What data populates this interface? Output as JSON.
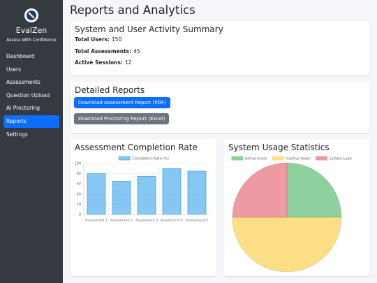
{
  "sidebar": {
    "brand": "EvalZen",
    "tagline": "Assess With Confidence",
    "nav": [
      "Dashboard",
      "Users",
      "Assessments",
      "Question Upload",
      "AI Proctoring",
      "Reports",
      "Settings"
    ],
    "active": 5
  },
  "page_title": "Reports and Analytics",
  "summary": {
    "title": "System and User Activity Summary",
    "items": [
      {
        "label": "Total Users:",
        "value": 150
      },
      {
        "label": "Total Assessments:",
        "value": 45
      },
      {
        "label": "Active Sessions:",
        "value": 12
      }
    ]
  },
  "reports": {
    "title": "Detailed Reports",
    "buttons": [
      {
        "label": "Download Assessment Report (PDF)",
        "color": "#0d6efd"
      },
      {
        "label": "Download Proctoring Report (Excel)",
        "color": "#6c757d"
      }
    ]
  },
  "chart_data": [
    {
      "type": "bar",
      "title": "Assessment Completion Rate",
      "categories": [
        "Assessment 1",
        "Assessment 2",
        "Assessment 3",
        "Assessment 4",
        "Assessment 5"
      ],
      "series": [
        {
          "name": "Completion Rate (%)",
          "color": "#36a2eb",
          "values": [
            80,
            65,
            75,
            90,
            85
          ]
        }
      ],
      "ylim": [
        0,
        100
      ],
      "yticks": [
        0,
        20,
        40,
        60,
        80,
        100
      ],
      "grid": true
    },
    {
      "type": "pie",
      "title": "System Usage Statistics",
      "categories": [
        "Active Users",
        "Inactive Users",
        "System Load"
      ],
      "values": [
        25,
        50,
        25
      ],
      "colors": [
        "#8fd19e",
        "#ffdf85",
        "#ee9aa3"
      ]
    }
  ]
}
